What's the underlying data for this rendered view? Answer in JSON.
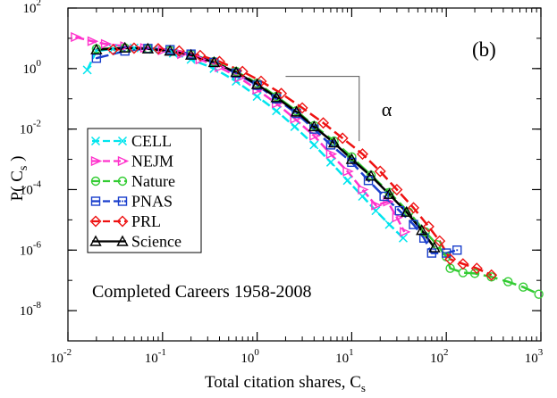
{
  "chart_data": {
    "type": "line",
    "panel_label": "(b)",
    "annotation": "Completed Careers 1958-2008",
    "slope_label": "α",
    "xlabel": {
      "main": "Total citation shares, C",
      "sub": "s"
    },
    "ylabel": {
      "main": "P( C",
      "sub": "s",
      "close": " )"
    },
    "xscale": "log",
    "yscale": "log",
    "xlim": [
      0.01,
      1000
    ],
    "ylim": [
      1e-09,
      100
    ],
    "x_ticks": [
      {
        "base": "10",
        "exp": "-2",
        "value": 0.01
      },
      {
        "base": "10",
        "exp": "-1",
        "value": 0.1
      },
      {
        "base": "10",
        "exp": "0",
        "value": 1
      },
      {
        "base": "10",
        "exp": "1",
        "value": 10
      },
      {
        "base": "10",
        "exp": "2",
        "value": 100
      },
      {
        "base": "10",
        "exp": "3",
        "value": 1000
      }
    ],
    "y_ticks": [
      {
        "base": "10",
        "exp": "-8",
        "value": 1e-08
      },
      {
        "base": "10",
        "exp": "-6",
        "value": 1e-06
      },
      {
        "base": "10",
        "exp": "-4",
        "value": 0.0001
      },
      {
        "base": "10",
        "exp": "-2",
        "value": 0.01
      },
      {
        "base": "10",
        "exp": "0",
        "value": 1
      },
      {
        "base": "10",
        "exp": "2",
        "value": 100
      }
    ],
    "legend_position": "left",
    "grid": false,
    "slope_guide": {
      "x_start": 2.0,
      "x_end": 12.0,
      "y_start": 0.55,
      "y_end": 0.004
    },
    "series": [
      {
        "name": "CELL",
        "color": "#00e5ee",
        "marker": "x",
        "dash": "10,4",
        "lw": 2.5,
        "points": [
          [
            0.016,
            0.9
          ],
          [
            0.02,
            3.8
          ],
          [
            0.03,
            4.5
          ],
          [
            0.05,
            4.8
          ],
          [
            0.08,
            4.3
          ],
          [
            0.13,
            3.2
          ],
          [
            0.2,
            2.0
          ],
          [
            0.35,
            1.0
          ],
          [
            0.6,
            0.38
          ],
          [
            1.0,
            0.12
          ],
          [
            1.6,
            0.04
          ],
          [
            2.5,
            0.012
          ],
          [
            4,
            0.003
          ],
          [
            6,
            0.0008
          ],
          [
            9,
            0.0002
          ],
          [
            13,
            6e-05
          ],
          [
            18,
            2e-05
          ],
          [
            25,
            7e-06
          ],
          [
            35,
            2.5e-06
          ]
        ]
      },
      {
        "name": "NEJM",
        "color": "#ff33cc",
        "marker": "tri-right",
        "dash": "10,4",
        "lw": 2.5,
        "points": [
          [
            0.012,
            11
          ],
          [
            0.018,
            8
          ],
          [
            0.025,
            6.5
          ],
          [
            0.04,
            5.5
          ],
          [
            0.065,
            4.8
          ],
          [
            0.1,
            4
          ],
          [
            0.16,
            3
          ],
          [
            0.25,
            2
          ],
          [
            0.4,
            1.1
          ],
          [
            0.65,
            0.5
          ],
          [
            1.0,
            0.2
          ],
          [
            1.6,
            0.07
          ],
          [
            2.5,
            0.022
          ],
          [
            4,
            0.006
          ],
          [
            6,
            0.0015
          ],
          [
            9,
            0.0004
          ],
          [
            13,
            0.0001
          ],
          [
            18,
            3e-05
          ],
          [
            24,
            4e-05
          ],
          [
            30,
            1.2e-05
          ],
          [
            36,
            4e-06
          ]
        ]
      },
      {
        "name": "Nature",
        "color": "#33cc33",
        "marker": "circle",
        "dash": "16,6",
        "lw": 2.5,
        "points": [
          [
            0.02,
            4.5
          ],
          [
            0.04,
            4.8
          ],
          [
            0.07,
            4.6
          ],
          [
            0.12,
            4.0
          ],
          [
            0.2,
            3.0
          ],
          [
            0.35,
            1.7
          ],
          [
            0.6,
            0.8
          ],
          [
            1.0,
            0.33
          ],
          [
            1.6,
            0.12
          ],
          [
            2.6,
            0.04
          ],
          [
            4,
            0.013
          ],
          [
            6.5,
            0.004
          ],
          [
            10,
            0.0012
          ],
          [
            16,
            0.0003
          ],
          [
            25,
            8e-05
          ],
          [
            40,
            1.8e-05
          ],
          [
            60,
            4e-06
          ],
          [
            80,
            1.5e-06
          ],
          [
            100,
            6e-07
          ],
          [
            110,
            2.5e-07
          ],
          [
            150,
            1.8e-07
          ],
          [
            200,
            1.7e-07
          ],
          [
            300,
            1.3e-07
          ],
          [
            450,
            9e-08
          ],
          [
            650,
            6e-08
          ],
          [
            950,
            3.5e-08
          ]
        ]
      },
      {
        "name": "PNAS",
        "color": "#1a3fcc",
        "marker": "square",
        "dash": "14,5",
        "lw": 2.5,
        "points": [
          [
            0.02,
            2.2
          ],
          [
            0.04,
            3.8
          ],
          [
            0.07,
            4.6
          ],
          [
            0.12,
            4.2
          ],
          [
            0.2,
            3.0
          ],
          [
            0.35,
            1.6
          ],
          [
            0.6,
            0.7
          ],
          [
            1.0,
            0.28
          ],
          [
            1.6,
            0.1
          ],
          [
            2.6,
            0.033
          ],
          [
            4,
            0.01
          ],
          [
            6,
            0.003
          ],
          [
            10,
            0.0008
          ],
          [
            15,
            0.0002
          ],
          [
            22,
            6e-05
          ],
          [
            32,
            2e-05
          ],
          [
            45,
            7e-06
          ],
          [
            58,
            2.5e-06
          ],
          [
            70,
            8e-07
          ],
          [
            100,
            8e-07
          ],
          [
            130,
            1e-06
          ]
        ]
      },
      {
        "name": "PRL",
        "color": "#ee1111",
        "marker": "diamond",
        "dash": "12,5",
        "lw": 2.5,
        "points": [
          [
            0.03,
            4.2
          ],
          [
            0.05,
            4.7
          ],
          [
            0.09,
            4.5
          ],
          [
            0.15,
            3.8
          ],
          [
            0.25,
            2.7
          ],
          [
            0.4,
            1.7
          ],
          [
            0.7,
            0.8
          ],
          [
            1.1,
            0.38
          ],
          [
            1.8,
            0.15
          ],
          [
            3,
            0.05
          ],
          [
            5,
            0.016
          ],
          [
            8,
            0.005
          ],
          [
            13,
            0.0015
          ],
          [
            20,
            0.0004
          ],
          [
            30,
            0.0001
          ],
          [
            45,
            2.5e-05
          ],
          [
            65,
            6e-06
          ],
          [
            85,
            2e-06
          ],
          [
            110,
            5e-07
          ],
          [
            150,
            3.5e-07
          ],
          [
            210,
            2.5e-07
          ],
          [
            300,
            1.5e-07
          ]
        ]
      },
      {
        "name": "Science",
        "color": "#000000",
        "marker": "triangle",
        "dash": "",
        "lw": 2.5,
        "points": [
          [
            0.02,
            4.2
          ],
          [
            0.04,
            4.8
          ],
          [
            0.07,
            4.5
          ],
          [
            0.12,
            3.8
          ],
          [
            0.2,
            2.8
          ],
          [
            0.35,
            1.6
          ],
          [
            0.6,
            0.75
          ],
          [
            1.0,
            0.3
          ],
          [
            1.6,
            0.11
          ],
          [
            2.6,
            0.037
          ],
          [
            4,
            0.012
          ],
          [
            6.5,
            0.0035
          ],
          [
            10,
            0.001
          ],
          [
            16,
            0.00028
          ],
          [
            25,
            7e-05
          ],
          [
            38,
            1.8e-05
          ],
          [
            55,
            4.5e-06
          ],
          [
            75,
            1.2e-06
          ]
        ]
      }
    ]
  }
}
